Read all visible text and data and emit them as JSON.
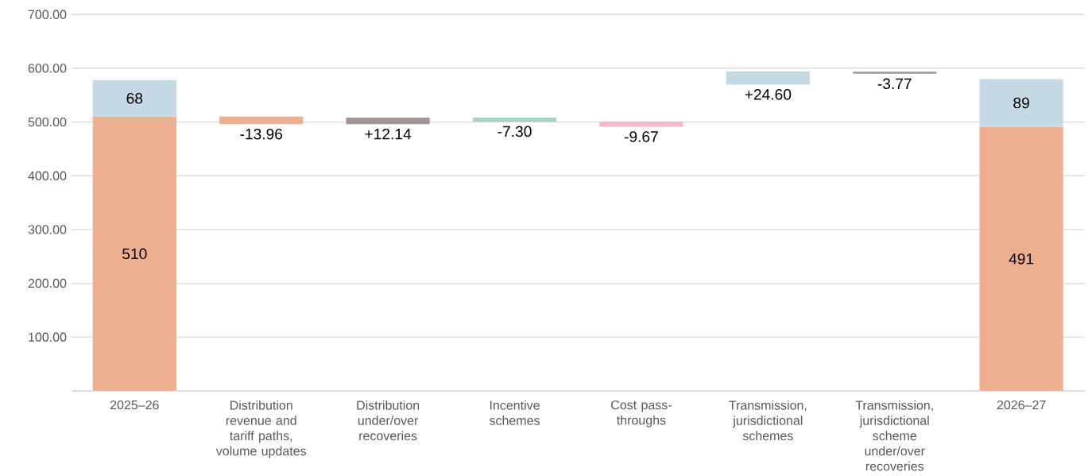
{
  "chart_data": {
    "type": "bar",
    "stacked": true,
    "categories": [
      "2025–26",
      "Distribution revenue and tariff paths, volume updates",
      "Distribution under/over recoveries",
      "Incentive schemes",
      "Cost pass-throughs",
      "Transmission, jurisdictional schemes",
      "Transmission, jurisdictional scheme under/over recoveries",
      "2026–27"
    ],
    "series": [
      {
        "colors": [
          "#eeae90",
          "#eeae90",
          "#a09592",
          "#a8d3c3",
          "#f4b5d0",
          null,
          null,
          "#eeae90"
        ],
        "values": [
          510,
          -13.96,
          12.14,
          -7.3,
          -9.67,
          null,
          null,
          491
        ],
        "base": [
          null,
          510,
          496.04,
          508.18,
          500.88,
          null,
          null,
          null
        ],
        "value_labels": [
          "510",
          "-13.96",
          "+12.14",
          "-7.30",
          "-9.67",
          null,
          null,
          "491"
        ]
      },
      {
        "colors": [
          "#c5d9e5",
          null,
          null,
          null,
          null,
          "#c5d9e5",
          "#9299a3",
          "#c5d9e5"
        ],
        "values": [
          68,
          null,
          null,
          null,
          null,
          24.6,
          -3.77,
          89
        ],
        "base": [
          null,
          null,
          null,
          null,
          null,
          569.6,
          593.5,
          null
        ],
        "value_labels": [
          "68",
          null,
          null,
          null,
          null,
          "+24.60",
          "-3.77",
          "89"
        ]
      }
    ],
    "ylim": [
      0,
      700
    ],
    "yticks": [
      {
        "value": 100,
        "label": "100.00"
      },
      {
        "value": 200,
        "label": "200.00"
      },
      {
        "value": 300,
        "label": "300.00"
      },
      {
        "value": 400,
        "label": "400.00"
      },
      {
        "value": 500,
        "label": "500.00"
      },
      {
        "value": 600,
        "label": "600.00"
      },
      {
        "value": 700,
        "label": "700.00"
      }
    ],
    "grid": "y"
  }
}
